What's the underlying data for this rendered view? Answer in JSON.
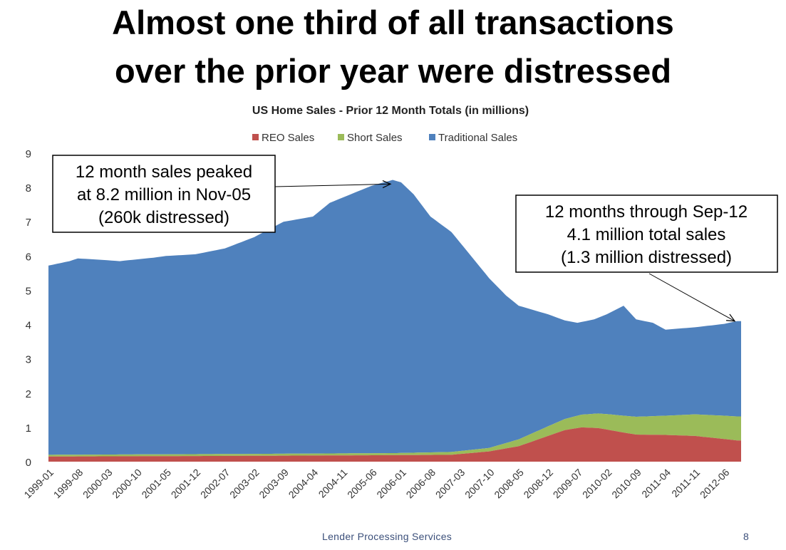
{
  "headline": {
    "line1": "Almost one third of all transactions",
    "line2": "over the prior year were distressed"
  },
  "footer": {
    "company": "Lender Processing Services",
    "page_number": "8"
  },
  "colors": {
    "reo": "#c0504d",
    "short": "#9bbb59",
    "traditional": "#4f81bd"
  },
  "chart_data": {
    "type": "area",
    "stacked": true,
    "title": "US Home Sales - Prior 12 Month Totals  (in millions)",
    "xlabel": "",
    "ylabel": "",
    "ylim": [
      0,
      9
    ],
    "yticks": [
      0,
      1,
      2,
      3,
      4,
      5,
      6,
      7,
      8,
      9
    ],
    "legend_position": "top-center",
    "grid": false,
    "x_start": "1999-01",
    "x_step_months": 1,
    "x_count": 166,
    "xtick_labels": [
      "1999-01",
      "1999-08",
      "2000-03",
      "2000-10",
      "2001-05",
      "2001-12",
      "2002-07",
      "2003-02",
      "2003-09",
      "2004-04",
      "2004-11",
      "2005-06",
      "2006-01",
      "2006-08",
      "2007-03",
      "2007-10",
      "2008-05",
      "2008-12",
      "2009-07",
      "2010-02",
      "2010-09",
      "2011-04",
      "2011-11",
      "2012-06"
    ],
    "series": [
      {
        "name": "REO Sales",
        "color": "#c0504d",
        "anchors": [
          [
            "1999-01",
            0.15
          ],
          [
            "2003-01",
            0.17
          ],
          [
            "2005-12",
            0.19
          ],
          [
            "2007-01",
            0.2
          ],
          [
            "2007-10",
            0.3
          ],
          [
            "2008-05",
            0.45
          ],
          [
            "2008-12",
            0.75
          ],
          [
            "2009-04",
            0.92
          ],
          [
            "2009-08",
            1.0
          ],
          [
            "2009-12",
            0.98
          ],
          [
            "2010-06",
            0.85
          ],
          [
            "2010-09",
            0.79
          ],
          [
            "2011-04",
            0.78
          ],
          [
            "2011-11",
            0.75
          ],
          [
            "2012-06",
            0.66
          ],
          [
            "2012-09",
            0.62
          ]
        ]
      },
      {
        "name": "Short Sales",
        "color": "#9bbb59",
        "anchors": [
          [
            "1999-01",
            0.05
          ],
          [
            "2005-12",
            0.06
          ],
          [
            "2007-10",
            0.1
          ],
          [
            "2008-05",
            0.2
          ],
          [
            "2008-12",
            0.28
          ],
          [
            "2009-07",
            0.36
          ],
          [
            "2010-02",
            0.45
          ],
          [
            "2010-09",
            0.52
          ],
          [
            "2011-04",
            0.56
          ],
          [
            "2011-11",
            0.63
          ],
          [
            "2012-06",
            0.68
          ],
          [
            "2012-09",
            0.7
          ]
        ]
      },
      {
        "name": "Traditional Sales",
        "color": "#4f81bd",
        "total_anchors": [
          [
            "1999-01",
            5.72
          ],
          [
            "1999-06",
            5.85
          ],
          [
            "1999-08",
            5.93
          ],
          [
            "1999-12",
            5.9
          ],
          [
            "2000-06",
            5.85
          ],
          [
            "2000-10",
            5.9
          ],
          [
            "2001-02",
            5.95
          ],
          [
            "2001-05",
            6.0
          ],
          [
            "2001-12",
            6.05
          ],
          [
            "2002-07",
            6.22
          ],
          [
            "2003-02",
            6.55
          ],
          [
            "2003-09",
            7.0
          ],
          [
            "2004-04",
            7.15
          ],
          [
            "2004-08",
            7.55
          ],
          [
            "2004-11",
            7.7
          ],
          [
            "2005-06",
            8.05
          ],
          [
            "2005-11",
            8.22
          ],
          [
            "2006-01",
            8.15
          ],
          [
            "2006-04",
            7.8
          ],
          [
            "2006-08",
            7.15
          ],
          [
            "2007-01",
            6.7
          ],
          [
            "2007-03",
            6.4
          ],
          [
            "2007-07",
            5.8
          ],
          [
            "2007-10",
            5.35
          ],
          [
            "2008-02",
            4.85
          ],
          [
            "2008-05",
            4.55
          ],
          [
            "2008-12",
            4.3
          ],
          [
            "2009-04",
            4.12
          ],
          [
            "2009-07",
            4.05
          ],
          [
            "2009-11",
            4.15
          ],
          [
            "2010-02",
            4.3
          ],
          [
            "2010-06",
            4.55
          ],
          [
            "2010-09",
            4.15
          ],
          [
            "2011-01",
            4.05
          ],
          [
            "2011-04",
            3.85
          ],
          [
            "2011-11",
            3.92
          ],
          [
            "2012-06",
            4.02
          ],
          [
            "2012-09",
            4.1
          ]
        ]
      }
    ],
    "annotations": [
      {
        "lines": [
          "12 month sales peaked",
          "at 8.2 million in Nov-05",
          "(260k distressed)"
        ],
        "target_date": "2005-11",
        "target_value": 8.1
      },
      {
        "lines": [
          "12 months through Sep-12",
          "4.1 million total sales",
          "(1.3 million distressed)"
        ],
        "target_date": "2012-09",
        "target_value": 4.1
      }
    ]
  }
}
